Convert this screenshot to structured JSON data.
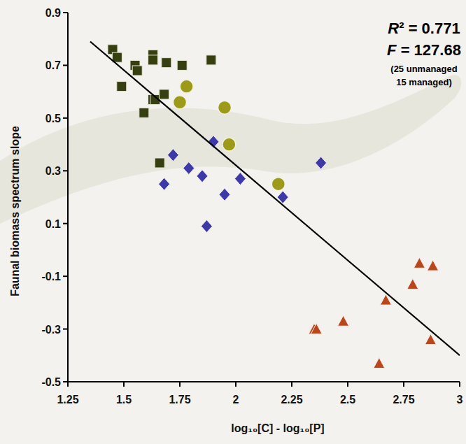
{
  "chart_data": {
    "type": "scatter",
    "x_label": "log₁₀[C] - log₁₀[P]",
    "y_label": "Faunal biomass spectrum slope",
    "annotations": [
      "R² = 0.771",
      "F = 127.68",
      "(25 unmanaged",
      "15 managed)"
    ],
    "xlim": [
      1.25,
      3
    ],
    "ylim": [
      -0.5,
      0.9
    ],
    "xticks": [
      1.25,
      1.5,
      1.75,
      2,
      2.25,
      2.5,
      2.75,
      3
    ],
    "yticks": [
      -0.5,
      -0.3,
      -0.1,
      0.1,
      0.3,
      0.5,
      0.7,
      0.9
    ],
    "grid": false,
    "series": [
      {
        "color": "#353f10",
        "marker": "square",
        "x": [
          1.45,
          1.47,
          1.49,
          1.55,
          1.56,
          1.59,
          1.63,
          1.63,
          1.63,
          1.64,
          1.68,
          1.69,
          1.76,
          1.89,
          1.66
        ],
        "values": [
          0.76,
          0.73,
          0.62,
          0.7,
          0.68,
          0.52,
          0.74,
          0.72,
          0.57,
          0.57,
          0.59,
          0.71,
          0.7,
          0.72,
          0.33
        ]
      },
      {
        "color": "#9c9a18",
        "marker": "circle",
        "x": [
          1.78,
          1.75,
          1.95,
          1.97,
          2.19
        ],
        "values": [
          0.62,
          0.56,
          0.54,
          0.4,
          0.25
        ]
      },
      {
        "color": "#3d3aa8",
        "marker": "diamond",
        "x": [
          1.72,
          1.68,
          1.79,
          1.85,
          1.9,
          1.95,
          2.02,
          2.21,
          2.38,
          1.87
        ],
        "values": [
          0.36,
          0.25,
          0.31,
          0.28,
          0.41,
          0.21,
          0.27,
          0.2,
          0.33,
          0.09
        ]
      },
      {
        "color": "#b9471b",
        "marker": "triangle",
        "x": [
          2.35,
          2.36,
          2.48,
          2.67,
          2.79,
          2.82,
          2.88,
          2.87,
          2.64
        ],
        "values": [
          -0.3,
          -0.3,
          -0.27,
          -0.19,
          -0.13,
          -0.05,
          -0.06,
          -0.34,
          -0.43
        ]
      },
      {
        "type": "line",
        "color": "#000000",
        "line_style": "solid",
        "x": [
          1.35,
          3
        ],
        "values": [
          0.79,
          -0.4
        ]
      }
    ]
  }
}
